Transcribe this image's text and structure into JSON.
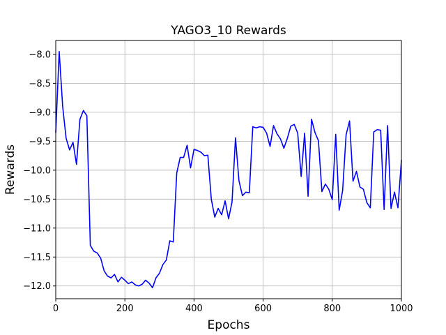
{
  "chart_data": {
    "type": "line",
    "title": "YAGO3_10 Rewards",
    "xlabel": "Epochs",
    "ylabel": "Rewards",
    "xlim": [
      0,
      1000
    ],
    "ylim": [
      -12.22,
      -7.76
    ],
    "xticks": [
      0,
      200,
      400,
      600,
      800,
      1000
    ],
    "yticks": [
      -8.0,
      -8.5,
      -9.0,
      -9.5,
      -10.0,
      -10.5,
      -11.0,
      -11.5,
      -12.0
    ],
    "xtick_labels": [
      "0",
      "200",
      "400",
      "600",
      "800",
      "1000"
    ],
    "ytick_labels": [
      "−8.0",
      "−8.5",
      "−9.0",
      "−9.5",
      "−10.0",
      "−10.5",
      "−11.0",
      "−11.5",
      "−12.0"
    ],
    "grid": true,
    "line_color": "#0000ff",
    "series": [
      {
        "name": "",
        "x": [
          0,
          10,
          20,
          30,
          40,
          50,
          60,
          70,
          80,
          90,
          100,
          110,
          120,
          130,
          140,
          150,
          160,
          170,
          180,
          190,
          200,
          210,
          220,
          230,
          240,
          250,
          260,
          270,
          280,
          290,
          300,
          310,
          320,
          330,
          340,
          350,
          360,
          370,
          380,
          390,
          400,
          410,
          420,
          430,
          440,
          450,
          460,
          470,
          480,
          490,
          500,
          510,
          520,
          530,
          540,
          550,
          560,
          570,
          580,
          590,
          600,
          610,
          620,
          630,
          640,
          650,
          660,
          670,
          680,
          690,
          700,
          710,
          720,
          730,
          740,
          750,
          760,
          770,
          780,
          790,
          800,
          810,
          820,
          830,
          840,
          850,
          860,
          870,
          880,
          890,
          900,
          910,
          920,
          930,
          940,
          950,
          960,
          970,
          980,
          990,
          1000
        ],
        "y": [
          -9.35,
          -7.95,
          -8.9,
          -9.45,
          -9.65,
          -9.52,
          -9.9,
          -9.12,
          -8.97,
          -9.06,
          -11.3,
          -11.4,
          -11.43,
          -11.52,
          -11.74,
          -11.83,
          -11.86,
          -11.8,
          -11.93,
          -11.85,
          -11.9,
          -11.96,
          -11.93,
          -11.98,
          -12.0,
          -11.97,
          -11.9,
          -11.95,
          -12.03,
          -11.86,
          -11.78,
          -11.63,
          -11.55,
          -11.22,
          -11.24,
          -10.05,
          -9.78,
          -9.78,
          -9.57,
          -9.96,
          -9.64,
          -9.66,
          -9.69,
          -9.75,
          -9.74,
          -10.5,
          -10.81,
          -10.66,
          -10.77,
          -10.53,
          -10.84,
          -10.55,
          -9.44,
          -10.18,
          -10.44,
          -10.38,
          -10.39,
          -9.25,
          -9.27,
          -9.25,
          -9.26,
          -9.36,
          -9.59,
          -9.23,
          -9.37,
          -9.46,
          -9.62,
          -9.45,
          -9.24,
          -9.21,
          -9.36,
          -10.11,
          -9.36,
          -10.45,
          -9.12,
          -9.35,
          -9.49,
          -10.37,
          -10.24,
          -10.33,
          -10.51,
          -9.38,
          -10.69,
          -10.35,
          -9.39,
          -9.15,
          -10.19,
          -10.02,
          -10.29,
          -10.33,
          -10.56,
          -10.65,
          -9.34,
          -9.3,
          -9.31,
          -10.68,
          -9.23,
          -10.66,
          -10.38,
          -10.65,
          -9.83
        ]
      }
    ]
  }
}
